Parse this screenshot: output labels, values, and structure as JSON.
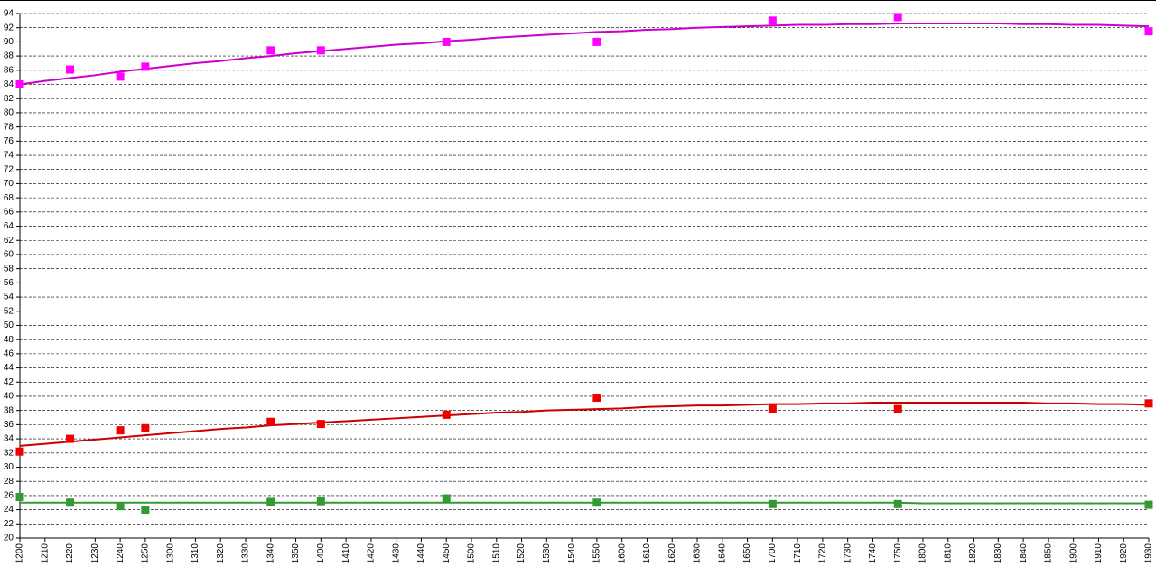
{
  "chart_data": {
    "type": "line",
    "categories": [
      "1200",
      "1210",
      "1220",
      "1230",
      "1240",
      "1250",
      "1300",
      "1310",
      "1320",
      "1330",
      "1340",
      "1350",
      "1400",
      "1410",
      "1420",
      "1430",
      "1440",
      "1450",
      "1500",
      "1510",
      "1520",
      "1530",
      "1540",
      "1550",
      "1600",
      "1610",
      "1620",
      "1630",
      "1640",
      "1650",
      "1700",
      "1710",
      "1720",
      "1730",
      "1740",
      "1750",
      "1800",
      "1810",
      "1820",
      "1830",
      "1840",
      "1850",
      "1900",
      "1910",
      "1920",
      "1930"
    ],
    "ylim": [
      20,
      94
    ],
    "yticks": [
      20,
      22,
      24,
      26,
      28,
      30,
      32,
      34,
      36,
      38,
      40,
      42,
      44,
      46,
      48,
      50,
      52,
      54,
      56,
      58,
      60,
      62,
      64,
      66,
      68,
      70,
      72,
      74,
      76,
      78,
      80,
      82,
      84,
      86,
      88,
      90,
      92,
      94
    ],
    "grid": true,
    "series": [
      {
        "color": "#ff00ff",
        "style": "markers",
        "values": [
          84,
          null,
          86.1,
          null,
          85.1,
          86.5,
          null,
          null,
          null,
          null,
          88.8,
          null,
          88.8,
          null,
          null,
          null,
          null,
          90,
          null,
          null,
          null,
          null,
          null,
          90,
          null,
          null,
          null,
          null,
          null,
          null,
          93,
          null,
          null,
          null,
          null,
          93.5,
          null,
          null,
          null,
          null,
          null,
          null,
          null,
          null,
          null,
          91.5
        ]
      },
      {
        "color": "#ee0000",
        "style": "markers",
        "values": [
          32.2,
          null,
          34.0,
          null,
          35.2,
          35.5,
          null,
          null,
          null,
          null,
          36.4,
          null,
          36.1,
          null,
          null,
          null,
          null,
          37.4,
          null,
          null,
          null,
          null,
          null,
          39.8,
          null,
          null,
          null,
          null,
          null,
          null,
          38.2,
          null,
          null,
          null,
          null,
          38.2,
          null,
          null,
          null,
          null,
          null,
          null,
          null,
          null,
          null,
          39.0
        ]
      },
      {
        "color": "#339933",
        "style": "markers",
        "values": [
          25.8,
          null,
          25.0,
          null,
          24.5,
          24.0,
          null,
          null,
          null,
          null,
          25.1,
          null,
          25.2,
          null,
          null,
          null,
          null,
          25.6,
          null,
          null,
          null,
          null,
          null,
          25.0,
          null,
          null,
          null,
          null,
          null,
          null,
          24.8,
          null,
          null,
          null,
          null,
          24.8,
          null,
          null,
          null,
          null,
          null,
          null,
          null,
          null,
          null,
          24.7
        ]
      },
      {
        "color": "#cc00cc",
        "style": "line",
        "values": [
          84.0,
          84.5,
          84.9,
          85.3,
          85.8,
          86.2,
          86.6,
          87.0,
          87.3,
          87.7,
          88.0,
          88.4,
          88.7,
          89.0,
          89.3,
          89.6,
          89.8,
          90.1,
          90.3,
          90.6,
          90.8,
          91.0,
          91.2,
          91.4,
          91.5,
          91.7,
          91.8,
          92.0,
          92.1,
          92.2,
          92.3,
          92.4,
          92.4,
          92.5,
          92.5,
          92.6,
          92.6,
          92.6,
          92.6,
          92.6,
          92.5,
          92.5,
          92.4,
          92.4,
          92.3,
          92.2
        ]
      },
      {
        "color": "#cc0000",
        "style": "line",
        "values": [
          33.0,
          33.3,
          33.6,
          33.9,
          34.2,
          34.5,
          34.8,
          35.1,
          35.4,
          35.6,
          35.9,
          36.1,
          36.3,
          36.5,
          36.7,
          36.9,
          37.1,
          37.3,
          37.5,
          37.7,
          37.8,
          38.0,
          38.1,
          38.2,
          38.3,
          38.5,
          38.6,
          38.7,
          38.7,
          38.8,
          38.9,
          38.9,
          39.0,
          39.0,
          39.1,
          39.1,
          39.1,
          39.1,
          39.1,
          39.1,
          39.1,
          39.0,
          39.0,
          38.9,
          38.9,
          38.8
        ]
      },
      {
        "color": "#339933",
        "style": "line",
        "values": [
          25.0,
          25.0,
          25.0,
          25.0,
          25.0,
          25.0,
          25.0,
          25.0,
          25.0,
          25.0,
          25.0,
          25.0,
          25.0,
          25.0,
          25.0,
          25.0,
          25.0,
          25.0,
          25.0,
          25.0,
          25.0,
          25.0,
          25.0,
          25.0,
          25.0,
          25.0,
          25.0,
          25.0,
          25.0,
          25.0,
          25.0,
          25.0,
          25.0,
          25.0,
          25.0,
          25.0,
          24.9,
          24.9,
          24.9,
          24.9,
          24.9,
          24.9,
          24.9,
          24.9,
          24.9,
          24.9
        ]
      }
    ]
  }
}
